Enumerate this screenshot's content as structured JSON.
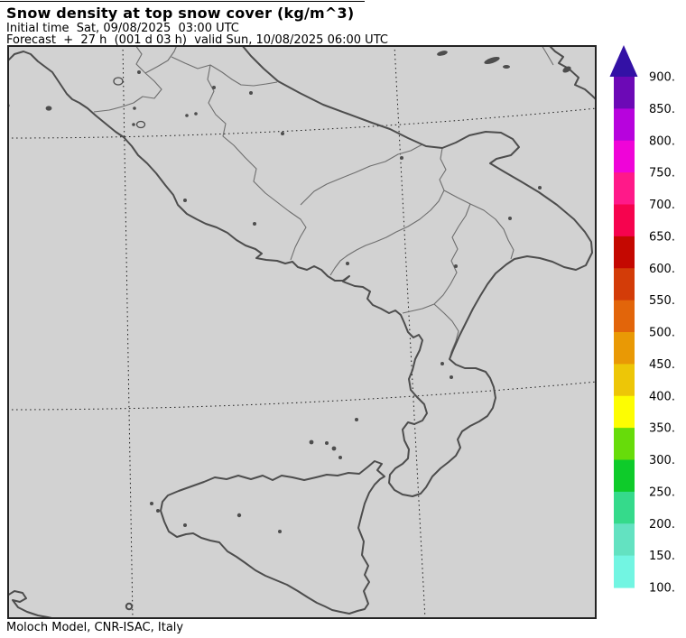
{
  "header": {
    "title": "Snow density at top snow cover (kg/m^3)",
    "line1": "Initial time  Sat, 09/08/2025  03:00 UTC",
    "line2": "Forecast  +  27 h  (001 d 03 h)  valid Sun, 10/08/2025 06:00 UTC"
  },
  "footer": {
    "credit": "Moloch Model, CNR-ISAC, Italy"
  },
  "colorbar": {
    "tick_labels": [
      "900.",
      "850.",
      "800.",
      "750.",
      "700.",
      "650.",
      "600.",
      "550.",
      "500.",
      "450.",
      "400.",
      "350.",
      "300.",
      "250.",
      "200.",
      "150.",
      "100."
    ],
    "levels": [
      900,
      850,
      800,
      750,
      700,
      650,
      600,
      550,
      500,
      450,
      400,
      350,
      300,
      250,
      200,
      150,
      100
    ],
    "segment_colors_top_to_bottom": [
      "#6c09b6",
      "#b703dd",
      "#ef04d8",
      "#ff1989",
      "#f6034e",
      "#c40801",
      "#d33c08",
      "#e2650a",
      "#e99905",
      "#edc607",
      "#fdfd02",
      "#67dc0a",
      "#0ecb2a",
      "#35da8b",
      "#63e2c1",
      "#72f5e2"
    ],
    "arrow_color": "#3311a5"
  },
  "map": {
    "land_sea_color": "#d2d2d2",
    "coastline_color": "#4d4d4d",
    "region_border_color": "#6e6e6e",
    "grid_color": "#1a1a1a",
    "frame_color": "#232323"
  }
}
